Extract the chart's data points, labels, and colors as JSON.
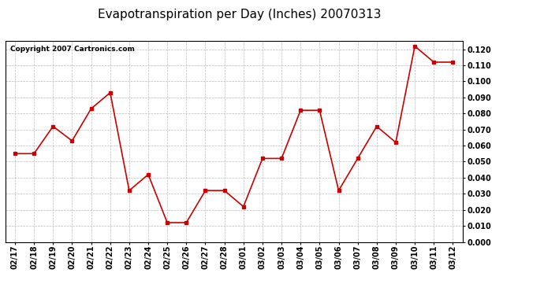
{
  "title": "Evapotranspiration per Day (Inches) 20070313",
  "copyright_text": "Copyright 2007 Cartronics.com",
  "x_labels": [
    "02/17",
    "02/18",
    "02/19",
    "02/20",
    "02/21",
    "02/22",
    "02/23",
    "02/24",
    "02/25",
    "02/26",
    "02/27",
    "02/28",
    "03/01",
    "03/02",
    "03/03",
    "03/04",
    "03/05",
    "03/06",
    "03/07",
    "03/08",
    "03/09",
    "03/10",
    "03/11",
    "03/12"
  ],
  "y_values": [
    0.055,
    0.055,
    0.072,
    0.063,
    0.083,
    0.093,
    0.032,
    0.042,
    0.012,
    0.012,
    0.032,
    0.032,
    0.022,
    0.052,
    0.052,
    0.082,
    0.082,
    0.032,
    0.052,
    0.072,
    0.062,
    0.122,
    0.112,
    0.112
  ],
  "line_color": "#cc0000",
  "marker": "s",
  "marker_size": 3,
  "line_width": 1.2,
  "ylim": [
    0.0,
    0.125
  ],
  "ytick_values": [
    0.0,
    0.01,
    0.02,
    0.03,
    0.04,
    0.05,
    0.06,
    0.07,
    0.08,
    0.09,
    0.1,
    0.11,
    0.12
  ],
  "background_color": "#ffffff",
  "plot_bg_color": "#ffffff",
  "grid_color": "#bbbbbb",
  "title_fontsize": 11,
  "copyright_fontsize": 6.5,
  "tick_fontsize": 7,
  "ytick_fontsize": 7
}
